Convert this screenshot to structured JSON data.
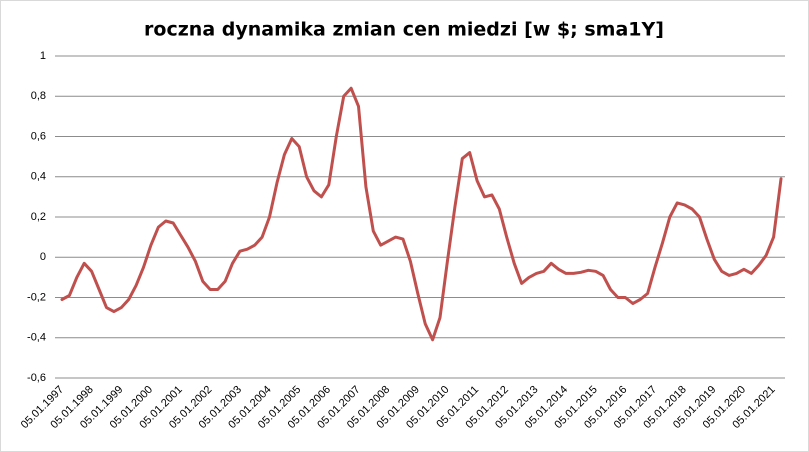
{
  "chart_data": {
    "type": "line",
    "title": "roczna dynamika zmian cen miedzi [w $; sma1Y]",
    "categories": [
      "05.01.1997",
      null,
      null,
      null,
      "05.01.1998",
      null,
      null,
      null,
      "05.01.1999",
      null,
      null,
      null,
      "05.01.2000",
      null,
      null,
      null,
      "05.01.2001",
      null,
      null,
      null,
      "05.01.2002",
      null,
      null,
      null,
      "05.01.2003",
      null,
      null,
      null,
      "05.01.2004",
      null,
      null,
      null,
      "05.01.2005",
      null,
      null,
      null,
      "05.01.2006",
      null,
      null,
      null,
      "05.01.2007",
      null,
      null,
      null,
      "05.01.2008",
      null,
      null,
      null,
      "05.01.2009",
      null,
      null,
      null,
      "05.01.2010",
      null,
      null,
      null,
      "05.01.2011",
      null,
      null,
      null,
      "05.01.2012",
      null,
      null,
      null,
      "05.01.2013",
      null,
      null,
      null,
      "05.01.2014",
      null,
      null,
      null,
      "05.01.2015",
      null,
      null,
      null,
      "05.01.2016",
      null,
      null,
      null,
      "05.01.2017",
      null,
      null,
      null,
      "05.01.2018",
      null,
      null,
      null,
      "05.01.2019",
      null,
      null,
      null,
      "05.01.2020",
      null,
      null,
      null,
      "05.01.2021",
      null
    ],
    "values": [
      -0.21,
      -0.19,
      -0.1,
      -0.03,
      -0.07,
      -0.16,
      -0.25,
      -0.27,
      -0.25,
      -0.21,
      -0.14,
      -0.05,
      0.06,
      0.15,
      0.18,
      0.17,
      0.11,
      0.05,
      -0.02,
      -0.12,
      -0.16,
      -0.16,
      -0.12,
      -0.03,
      0.03,
      0.04,
      0.06,
      0.1,
      0.2,
      0.37,
      0.51,
      0.59,
      0.55,
      0.4,
      0.33,
      0.3,
      0.36,
      0.6,
      0.8,
      0.84,
      0.75,
      0.35,
      0.13,
      0.06,
      0.08,
      0.1,
      0.09,
      -0.02,
      -0.18,
      -0.33,
      -0.41,
      -0.3,
      -0.02,
      0.25,
      0.49,
      0.52,
      0.38,
      0.3,
      0.31,
      0.24,
      0.1,
      -0.03,
      -0.13,
      -0.1,
      -0.08,
      -0.07,
      -0.03,
      -0.06,
      -0.08,
      -0.08,
      -0.075,
      -0.065,
      -0.07,
      -0.09,
      -0.16,
      -0.2,
      -0.2,
      -0.23,
      -0.21,
      -0.18,
      -0.05,
      0.07,
      0.2,
      0.27,
      0.26,
      0.24,
      0.2,
      0.09,
      -0.01,
      -0.07,
      -0.09,
      -0.08,
      -0.06,
      -0.08,
      -0.04,
      0.01,
      0.1,
      0.39
    ],
    "color": "#c0504d",
    "ylim": [
      -0.6,
      1
    ],
    "yticks": [
      {
        "value": -0.6,
        "label": "-0,6"
      },
      {
        "value": -0.4,
        "label": "-0,4"
      },
      {
        "value": -0.2,
        "label": "-0,2"
      },
      0,
      {
        "value": 0.2,
        "label": "0,2"
      },
      {
        "value": 0.4,
        "label": "0,4"
      },
      {
        "value": 0.6,
        "label": "0,6"
      },
      {
        "value": 0.8,
        "label": "0,8"
      },
      1
    ],
    "grid": true
  }
}
